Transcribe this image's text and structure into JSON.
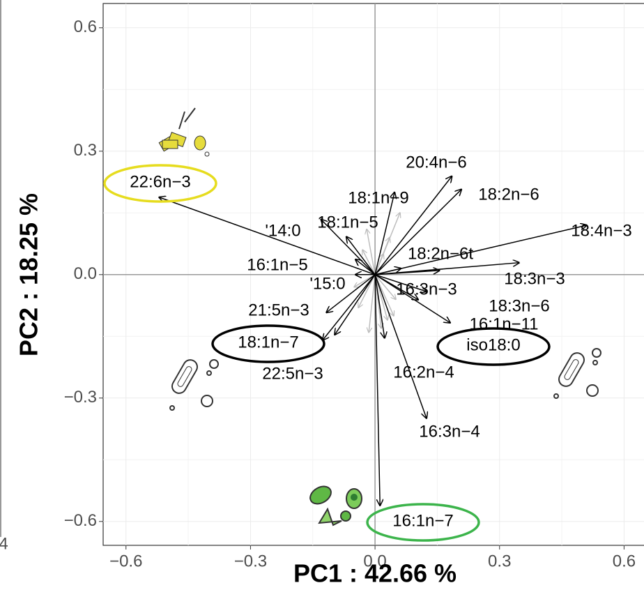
{
  "chart_data": {
    "type": "biplot",
    "xlabel": "PC1 :  42.66 %",
    "ylabel": "PC2 :  18.25 %",
    "xlim": [
      -0.655,
      0.648
    ],
    "ylim": [
      -0.658,
      0.659
    ],
    "xticks": [
      {
        "value": -0.6,
        "label": "−0.6"
      },
      {
        "value": -0.3,
        "label": "−0.3"
      },
      {
        "value": 0,
        "label": "0.0"
      },
      0.3,
      0.6
    ],
    "yticks": [
      {
        "value": -0.6,
        "label": "−0.6"
      },
      {
        "value": -0.3,
        "label": "−0.3"
      },
      {
        "value": 0,
        "label": "0.0"
      },
      0.3,
      0.6
    ],
    "grid": true,
    "zero_lines": true,
    "edge_fragment": "4",
    "arrow_color": "#000000",
    "loadings": [
      {
        "name": "22:6n−3",
        "x": -0.52,
        "y": 0.188,
        "highlight": "#e6dc1e"
      },
      {
        "name": "20:4n−6",
        "x": 0.185,
        "y": 0.239
      },
      {
        "name": "18:2n−6",
        "x": 0.208,
        "y": 0.207
      },
      {
        "name": "18:1n−9",
        "x": 0.047,
        "y": 0.2
      },
      {
        "name": "18:1n−5",
        "x": -0.069,
        "y": 0.092
      },
      {
        "name": "'14:0",
        "x": -0.13,
        "y": 0.134
      },
      {
        "name": "18:4n−3",
        "x": 0.51,
        "y": 0.12
      },
      {
        "name": "18:2n−6t",
        "x": 0.155,
        "y": 0.01
      },
      {
        "name": "18:3n−3",
        "x": 0.347,
        "y": 0.029
      },
      {
        "name": "16:1n−5",
        "x": -0.047,
        "y": 0.037
      },
      {
        "name": "'15:0",
        "x": -0.047,
        "y": 0.0
      },
      {
        "name": "16:3n−3",
        "x": 0.062,
        "y": 0.015
      },
      {
        "name": "18:3n−6",
        "x": 0.181,
        "y": -0.117
      },
      {
        "name": "16:1n−11",
        "x": 0.104,
        "y": -0.061
      },
      {
        "name": "iso18:0",
        "x": 0.124,
        "y": -0.041,
        "highlight": "#000000"
      },
      {
        "name": "21:5n−3",
        "x": -0.117,
        "y": -0.092
      },
      {
        "name": "18:1n−7",
        "x": -0.126,
        "y": -0.159,
        "highlight": "#000000"
      },
      {
        "name": "22:5n−3",
        "x": -0.097,
        "y": -0.146
      },
      {
        "name": "16:2n−4",
        "x": 0.023,
        "y": -0.154
      },
      {
        "name": "16:3n−4",
        "x": 0.124,
        "y": -0.349
      },
      {
        "name": "16:1n−7",
        "x": 0.012,
        "y": -0.561,
        "highlight": "#3cb44b"
      }
    ],
    "minor_loadings": {
      "color": "#bdbdbd",
      "x": [
        0.06,
        0.035,
        -0.02,
        0.015,
        -0.04,
        0.05,
        0.03,
        -0.03,
        -0.015,
        0.02,
        0.045,
        -0.05
      ],
      "y": [
        0.15,
        0.09,
        0.11,
        -0.13,
        -0.08,
        -0.06,
        -0.11,
        0.06,
        -0.14,
        0.05,
        -0.1,
        -0.03
      ]
    }
  }
}
